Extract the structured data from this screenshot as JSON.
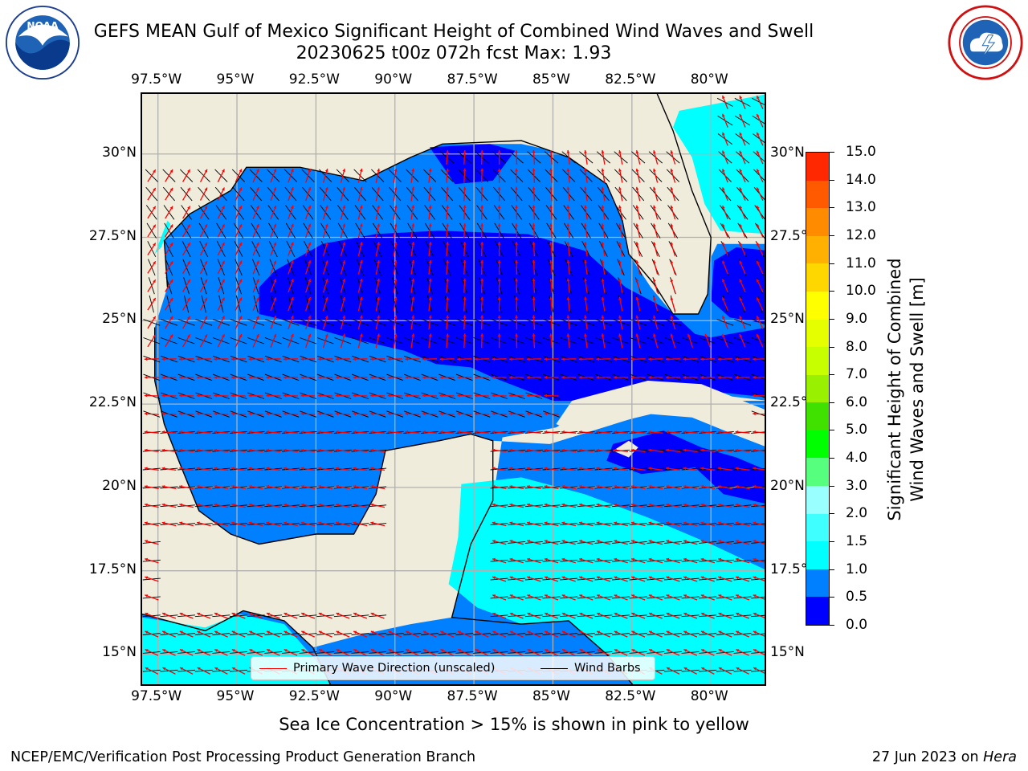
{
  "title": {
    "line1": "GEFS MEAN Gulf of Mexico Significant Height of Combined Wind Waves and Swell",
    "line2": "20230625 t00z 072h fcst   Max: 1.93"
  },
  "logos": {
    "left": {
      "icon": "noaa-logo",
      "text": "NOAA"
    },
    "right": {
      "icon": "nws-logo"
    }
  },
  "map": {
    "lon_range": [
      -98.0,
      -78.2
    ],
    "lat_range": [
      14.0,
      31.8
    ],
    "x_ticks": [
      "97.5°W",
      "95°W",
      "92.5°W",
      "90°W",
      "87.5°W",
      "85°W",
      "82.5°W",
      "80°W"
    ],
    "x_tick_values": [
      -97.5,
      -95,
      -92.5,
      -90,
      -87.5,
      -85,
      -82.5,
      -80
    ],
    "y_ticks": [
      "30°N",
      "27.5°N",
      "25°N",
      "22.5°N",
      "20°N",
      "17.5°N",
      "15°N"
    ],
    "y_tick_values": [
      30,
      27.5,
      25,
      22.5,
      20,
      17.5,
      15
    ],
    "grid": true,
    "land_color": "#efecdb",
    "grid_color": "#b0b0b0"
  },
  "legend": {
    "placement": "lower-center",
    "items": [
      {
        "label": "Primary Wave Direction (unscaled)",
        "color": "#ff0000"
      },
      {
        "label": "Wind Barbs",
        "color": "#000000"
      }
    ]
  },
  "colorbar": {
    "label": "Significant Height of Combined Wind Waves and Swell [m]",
    "label_line1": "Significant Height of Combined",
    "label_line2": "Wind Waves and Swell [m]",
    "ticks": [
      "0.0",
      "0.5",
      "1.0",
      "1.5",
      "2.0",
      "3.0",
      "4.0",
      "5.0",
      "6.0",
      "7.0",
      "8.0",
      "9.0",
      "10.0",
      "11.0",
      "12.0",
      "13.0",
      "14.0",
      "15.0"
    ],
    "colors": [
      "#0000ff",
      "#007fff",
      "#00ffff",
      "#40ffff",
      "#99ffff",
      "#57ff7f",
      "#00ff00",
      "#40e000",
      "#99f000",
      "#c8ff00",
      "#e6ff00",
      "#ffff00",
      "#ffd700",
      "#ffb000",
      "#ff8c00",
      "#ff5a00",
      "#ff2800"
    ]
  },
  "footnote": "Sea Ice Concentration > 15% is shown in pink to yellow",
  "credit_left": "NCEP/EMC/Verification Post Processing Product Generation Branch",
  "credit_right": {
    "date": "27 Jun 2023 on",
    "host": "Hera"
  }
}
